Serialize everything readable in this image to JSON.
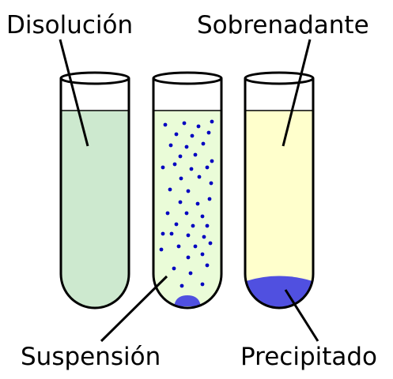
{
  "labels": {
    "solution": "Disolución",
    "supernatant": "Sobrenadante",
    "suspension": "Suspensión",
    "precipitate": "Precipitado"
  },
  "colors": {
    "solution_liquid": "#cde9cf",
    "suspension_liquid": "#eafcd8",
    "supernatant_liquid": "#ffffcc",
    "particles": "#0000c0",
    "precipitate": "#5050e0",
    "outline": "#000000",
    "glass_rim": "#ffffff"
  }
}
